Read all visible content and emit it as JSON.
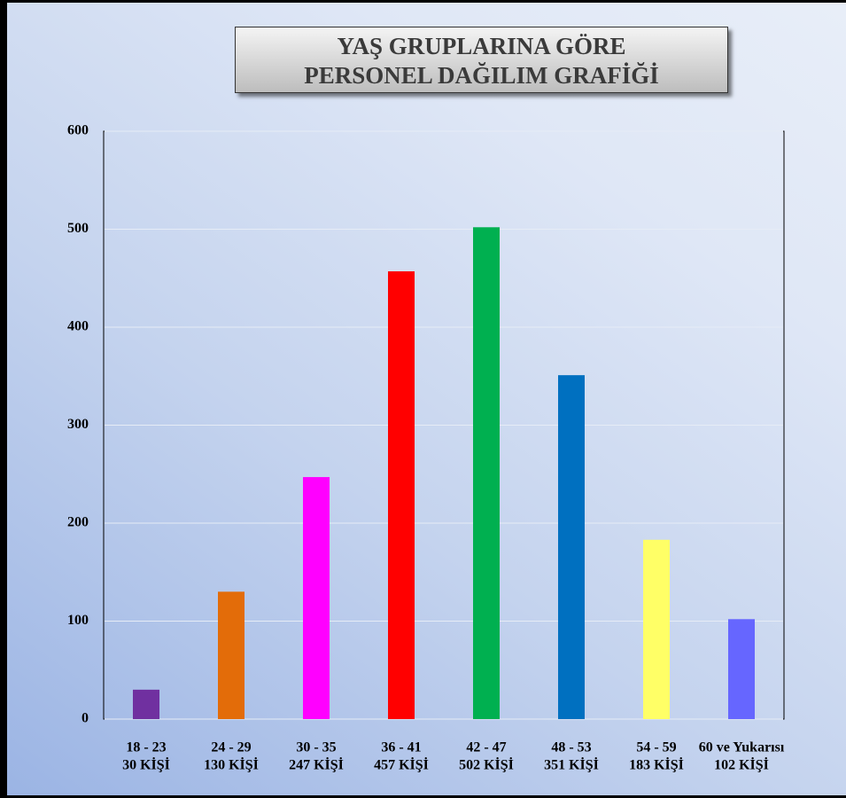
{
  "chart_data": {
    "type": "bar",
    "title": "YAŞ GRUPLARINA GÖRE PERSONEL DAĞILIM GRAFİĞİ",
    "categories": [
      "18 - 23",
      "24 - 29",
      "30 - 35",
      "36 - 41",
      "42 - 47",
      "48 - 53",
      "54 - 59",
      "60 ve Yukarısı"
    ],
    "values": [
      30,
      130,
      247,
      457,
      502,
      351,
      183,
      102
    ],
    "value_labels": [
      "30 KİŞİ",
      "130 KİŞİ",
      "247 KİŞİ",
      "457 KİŞİ",
      "502 KİŞİ",
      "351 KİŞİ",
      "183 KİŞİ",
      "102 KİŞİ"
    ],
    "colors": [
      "#7030a0",
      "#e36c09",
      "#ff00ff",
      "#ff0000",
      "#00b050",
      "#0070c0",
      "#ffff66",
      "#6666ff"
    ],
    "ylim": [
      0,
      600
    ],
    "yticks": [
      0,
      100,
      200,
      300,
      400,
      500,
      600
    ],
    "grid": true
  }
}
